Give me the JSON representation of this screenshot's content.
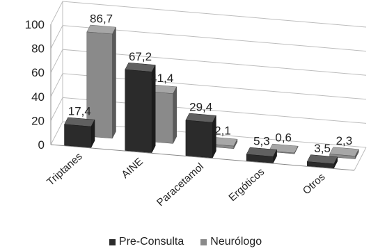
{
  "chart_data": {
    "type": "bar",
    "categories": [
      "Triptanes",
      "AINE",
      "Paracetamol",
      "Ergóticos",
      "Otros"
    ],
    "series": [
      {
        "name": "Pre-Consulta",
        "values": [
          17.4,
          67.2,
          29.4,
          5.3,
          3.5
        ],
        "labels": [
          "17,4",
          "67,2",
          "29,4",
          "5,3",
          "3,5"
        ],
        "color": "#2b2b2b"
      },
      {
        "name": "Neurólogo",
        "values": [
          86.7,
          41.4,
          2.1,
          0.6,
          2.3
        ],
        "labels": [
          "86,7",
          "41,4",
          "2,1",
          "0,6",
          "2,3"
        ],
        "color": "#8a8a8a"
      }
    ],
    "y_ticks": [
      "0",
      "20",
      "40",
      "60",
      "80",
      "100"
    ],
    "ylim": [
      0,
      100
    ],
    "grid": true,
    "three_d": true,
    "legend_position": "bottom"
  }
}
